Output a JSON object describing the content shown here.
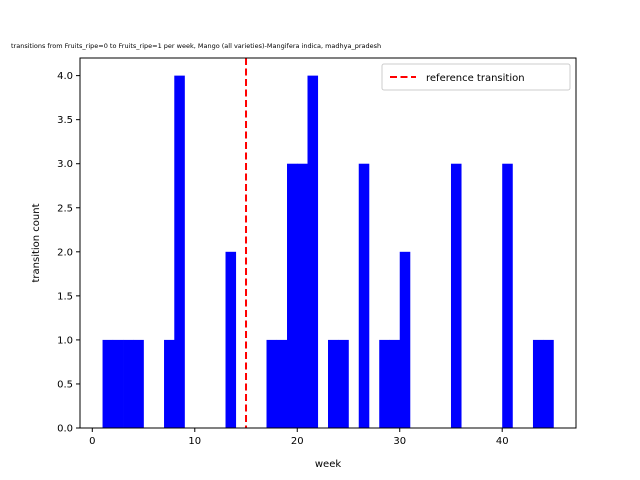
{
  "chart_data": {
    "type": "bar",
    "title": "transitions from Fruits_ripe=0 to Fruits_ripe=1 per week, Mango (all varieties)-Mangifera indica, madhya_pradesh",
    "xlabel": "week",
    "ylabel": "transition count",
    "xlim": [
      -1.2,
      47.2
    ],
    "ylim": [
      0,
      4.2
    ],
    "bin_width": 1,
    "x_ticks": [
      0,
      10,
      20,
      30,
      40
    ],
    "x_tick_labels": [
      "0",
      "10",
      "20",
      "30",
      "40"
    ],
    "y_ticks": [
      0,
      0.5,
      1.0,
      1.5,
      2.0,
      2.5,
      3.0,
      3.5,
      4.0
    ],
    "y_tick_labels": [
      "0.0",
      "0.5",
      "1.0",
      "1.5",
      "2.0",
      "2.5",
      "3.0",
      "3.5",
      "4.0"
    ],
    "series": [
      {
        "color": "#0000ff",
        "bars": [
          {
            "x": 1,
            "value": 1
          },
          {
            "x": 2,
            "value": 1
          },
          {
            "x": 3,
            "value": 1
          },
          {
            "x": 4,
            "value": 1
          },
          {
            "x": 7,
            "value": 1
          },
          {
            "x": 8,
            "value": 4
          },
          {
            "x": 13,
            "value": 2
          },
          {
            "x": 17,
            "value": 1
          },
          {
            "x": 18,
            "value": 1
          },
          {
            "x": 19,
            "value": 3
          },
          {
            "x": 20,
            "value": 3
          },
          {
            "x": 21,
            "value": 4
          },
          {
            "x": 23,
            "value": 1
          },
          {
            "x": 24,
            "value": 1
          },
          {
            "x": 26,
            "value": 3
          },
          {
            "x": 28,
            "value": 1
          },
          {
            "x": 29,
            "value": 1
          },
          {
            "x": 30,
            "value": 2
          },
          {
            "x": 35,
            "value": 3
          },
          {
            "x": 40,
            "value": 3
          },
          {
            "x": 43,
            "value": 1
          },
          {
            "x": 44,
            "value": 1
          }
        ]
      }
    ],
    "reference_line": {
      "x": 15,
      "label": "reference transition",
      "color": "#ff0000",
      "style": "dashed"
    },
    "legend_position": "top-right",
    "grid": false
  }
}
